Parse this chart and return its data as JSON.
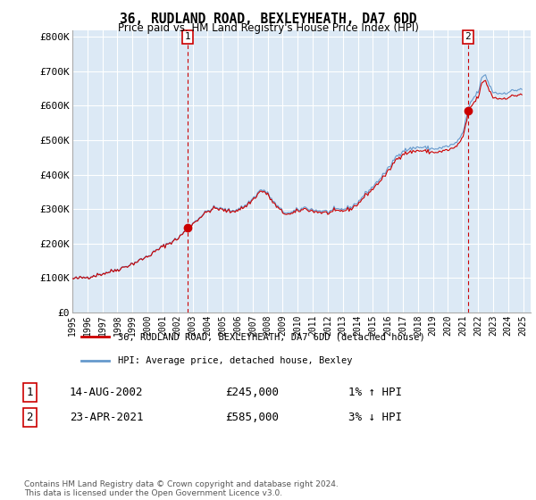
{
  "title": "36, RUDLAND ROAD, BEXLEYHEATH, DA7 6DD",
  "subtitle": "Price paid vs. HM Land Registry's House Price Index (HPI)",
  "ylim": [
    0,
    820000
  ],
  "yticks": [
    0,
    100000,
    200000,
    300000,
    400000,
    500000,
    600000,
    700000,
    800000
  ],
  "ytick_labels": [
    "£0",
    "£100K",
    "£200K",
    "£300K",
    "£400K",
    "£500K",
    "£600K",
    "£700K",
    "£800K"
  ],
  "background_color": "#ffffff",
  "chart_bg_color": "#dce9f5",
  "grid_color": "#ffffff",
  "sale1_year": 2002,
  "sale1_month": 8,
  "sale1_price": 245000,
  "sale1_label": "1",
  "sale2_year": 2021,
  "sale2_month": 4,
  "sale2_price": 585000,
  "sale2_label": "2",
  "legend_line1": "36, RUDLAND ROAD, BEXLEYHEATH, DA7 6DD (detached house)",
  "legend_line2": "HPI: Average price, detached house, Bexley",
  "table_row1": [
    "1",
    "14-AUG-2002",
    "£245,000",
    "1% ↑ HPI"
  ],
  "table_row2": [
    "2",
    "23-APR-2021",
    "£585,000",
    "3% ↓ HPI"
  ],
  "footnote": "Contains HM Land Registry data © Crown copyright and database right 2024.\nThis data is licensed under the Open Government Licence v3.0.",
  "hpi_color": "#6699cc",
  "price_color": "#cc0000",
  "sale_line_color": "#cc0000",
  "xlim_start": 1995.0,
  "xlim_end": 2025.5
}
